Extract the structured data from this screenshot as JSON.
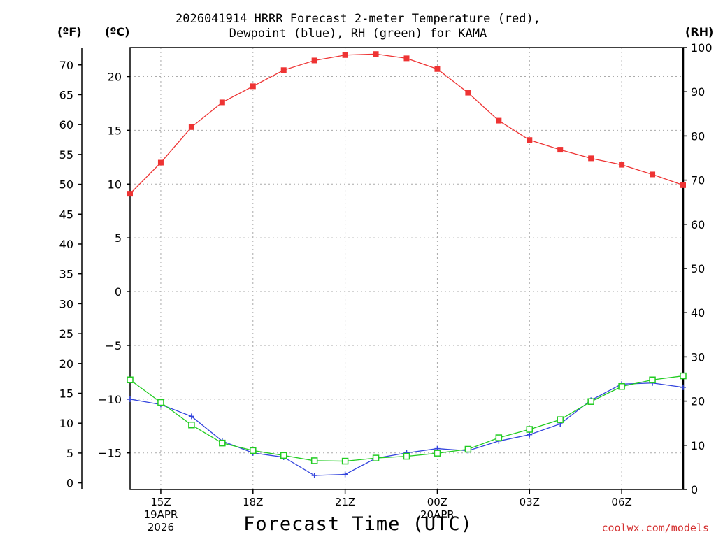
{
  "title_lines": [
    "2026041914 HRRR Forecast 2-meter Temperature (red),",
    "Dewpoint (blue), RH (green) for KAMA"
  ],
  "unit_labels": {
    "fahrenheit": "(ºF)",
    "celsius": "(ºC)",
    "rh": "(RH)"
  },
  "xlabel": "Forecast Time (UTC)",
  "credit": "coolwx.com/models",
  "colors": {
    "temperature": "#ee3333",
    "dewpoint": "#3344dd",
    "rh": "#22cc22",
    "grid": "#aaaaaa"
  },
  "chart_data": {
    "type": "line",
    "title": "2026041914 HRRR Forecast 2-meter Temperature (red), Dewpoint (blue), RH (green) for KAMA",
    "xlabel": "Forecast Time (UTC)",
    "x": [
      "14Z",
      "15Z",
      "16Z",
      "17Z",
      "18Z",
      "19Z",
      "20Z",
      "21Z",
      "22Z",
      "23Z",
      "00Z",
      "01Z",
      "02Z",
      "03Z",
      "04Z",
      "05Z",
      "06Z",
      "07Z",
      "08Z"
    ],
    "x_ticks": [
      {
        "index": 1,
        "lines": [
          "15Z",
          "19APR",
          "2026"
        ]
      },
      {
        "index": 4,
        "lines": [
          "18Z"
        ]
      },
      {
        "index": 7,
        "lines": [
          "21Z"
        ]
      },
      {
        "index": 10,
        "lines": [
          "00Z",
          "20APR"
        ]
      },
      {
        "index": 13,
        "lines": [
          "03Z"
        ]
      },
      {
        "index": 16,
        "lines": [
          "06Z"
        ]
      }
    ],
    "y_left_celsius": {
      "label": "(ºC)",
      "range": [
        -18.4,
        22.7
      ],
      "ticks": [
        -15,
        -10,
        -5,
        0,
        5,
        10,
        15,
        20
      ]
    },
    "y_left_fahrenheit": {
      "label": "(ºF)",
      "range": [
        -1.1,
        72.9
      ],
      "ticks": [
        0,
        5,
        10,
        15,
        20,
        25,
        30,
        35,
        40,
        45,
        50,
        55,
        60,
        65,
        70
      ]
    },
    "y_right_rh": {
      "label": "(RH)",
      "range": [
        0,
        100
      ],
      "ticks": [
        0,
        10,
        20,
        30,
        40,
        50,
        60,
        70,
        80,
        90,
        100
      ]
    },
    "grid": true,
    "series": [
      {
        "name": "Temperature",
        "units": "C",
        "axis": "celsius",
        "color": "#ee3333",
        "marker": "filled-square",
        "values": [
          9.1,
          12.0,
          15.3,
          17.6,
          19.1,
          20.6,
          21.5,
          22.0,
          22.1,
          21.7,
          20.7,
          18.5,
          15.9,
          14.1,
          13.2,
          12.4,
          11.8,
          10.9,
          9.9
        ]
      },
      {
        "name": "Dewpoint",
        "units": "C",
        "axis": "celsius",
        "color": "#3344dd",
        "marker": "plus",
        "values": [
          -10.0,
          -10.5,
          -11.6,
          -13.9,
          -15.0,
          -15.4,
          -17.1,
          -17.0,
          -15.5,
          -15.0,
          -14.6,
          -14.8,
          -13.9,
          -13.3,
          -12.3,
          -10.1,
          -8.6,
          -8.5,
          -8.9
        ]
      },
      {
        "name": "RH",
        "units": "%",
        "axis": "rh",
        "color": "#22cc22",
        "marker": "open-square",
        "values": [
          24.8,
          19.7,
          14.6,
          10.5,
          8.8,
          7.7,
          6.5,
          6.4,
          7.1,
          7.5,
          8.2,
          9.1,
          11.7,
          13.6,
          15.8,
          19.9,
          23.3,
          24.8,
          25.7
        ]
      }
    ]
  }
}
